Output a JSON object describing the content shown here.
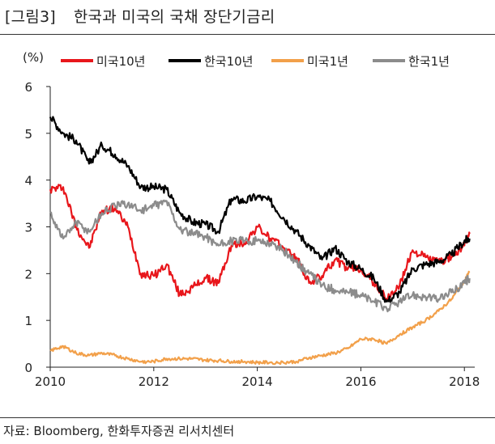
{
  "figure": {
    "label": "[그림3]",
    "title": "한국과 미국의 국채 장단기금리",
    "source": "자료: Bloomberg, 한화투자증권 리서치센터"
  },
  "chart_data": {
    "type": "line",
    "title": "",
    "xlabel": "",
    "ylabel": "(%)",
    "xlim": [
      2010,
      2018.2
    ],
    "ylim": [
      0,
      6
    ],
    "xticks": [
      2010,
      2012,
      2014,
      2016,
      2018
    ],
    "xtick_labels": [
      "2010",
      "2012",
      "2014",
      "2016",
      "2018"
    ],
    "yticks": [
      0,
      1,
      2,
      3,
      4,
      5,
      6
    ],
    "ytick_labels": [
      "0",
      "1",
      "2",
      "3",
      "4",
      "5",
      "6"
    ],
    "grid": false,
    "legend_position": "top",
    "series": [
      {
        "name": "미국10년",
        "color": "#e8161b",
        "x": [
          2010.0,
          2010.25,
          2010.5,
          2010.75,
          2011.0,
          2011.25,
          2011.5,
          2011.75,
          2012.0,
          2012.25,
          2012.5,
          2012.75,
          2013.0,
          2013.25,
          2013.5,
          2013.75,
          2014.0,
          2014.25,
          2014.5,
          2014.75,
          2015.0,
          2015.25,
          2015.5,
          2015.75,
          2016.0,
          2016.25,
          2016.5,
          2016.75,
          2017.0,
          2017.25,
          2017.5,
          2017.75,
          2018.0,
          2018.1
        ],
        "values": [
          3.8,
          3.85,
          3.0,
          2.55,
          3.35,
          3.4,
          3.0,
          2.0,
          1.95,
          2.2,
          1.55,
          1.7,
          1.9,
          1.8,
          2.6,
          2.65,
          3.0,
          2.75,
          2.55,
          2.35,
          1.8,
          1.95,
          2.3,
          2.1,
          2.1,
          1.8,
          1.45,
          1.75,
          2.5,
          2.35,
          2.25,
          2.35,
          2.6,
          2.85
        ]
      },
      {
        "name": "한국10년",
        "color": "#000000",
        "x": [
          2010.0,
          2010.25,
          2010.5,
          2010.75,
          2011.0,
          2011.25,
          2011.5,
          2011.75,
          2012.0,
          2012.25,
          2012.5,
          2012.75,
          2013.0,
          2013.25,
          2013.5,
          2013.75,
          2014.0,
          2014.25,
          2014.5,
          2014.75,
          2015.0,
          2015.25,
          2015.5,
          2015.75,
          2016.0,
          2016.25,
          2016.5,
          2016.75,
          2017.0,
          2017.25,
          2017.5,
          2017.75,
          2018.0,
          2018.1
        ],
        "values": [
          5.35,
          5.0,
          4.85,
          4.35,
          4.75,
          4.55,
          4.3,
          3.85,
          3.85,
          3.8,
          3.3,
          3.1,
          3.05,
          2.9,
          3.6,
          3.55,
          3.65,
          3.55,
          3.2,
          2.9,
          2.6,
          2.3,
          2.55,
          2.25,
          2.1,
          1.9,
          1.4,
          1.6,
          2.1,
          2.2,
          2.25,
          2.4,
          2.7,
          2.75
        ]
      },
      {
        "name": "미국1년",
        "color": "#f2a04a",
        "x": [
          2010.0,
          2010.25,
          2010.5,
          2010.75,
          2011.0,
          2011.25,
          2011.5,
          2011.75,
          2012.0,
          2012.25,
          2012.5,
          2012.75,
          2013.0,
          2013.25,
          2013.5,
          2013.75,
          2014.0,
          2014.25,
          2014.5,
          2014.75,
          2015.0,
          2015.25,
          2015.5,
          2015.75,
          2016.0,
          2016.25,
          2016.5,
          2016.75,
          2017.0,
          2017.25,
          2017.5,
          2017.75,
          2018.0,
          2018.1
        ],
        "values": [
          0.35,
          0.45,
          0.3,
          0.25,
          0.3,
          0.25,
          0.18,
          0.12,
          0.12,
          0.18,
          0.18,
          0.18,
          0.15,
          0.14,
          0.12,
          0.12,
          0.1,
          0.1,
          0.1,
          0.12,
          0.2,
          0.25,
          0.3,
          0.4,
          0.6,
          0.6,
          0.5,
          0.7,
          0.85,
          1.0,
          1.2,
          1.45,
          1.85,
          2.05
        ]
      },
      {
        "name": "한국1년",
        "color": "#8c8c8c",
        "x": [
          2010.0,
          2010.25,
          2010.5,
          2010.75,
          2011.0,
          2011.25,
          2011.5,
          2011.75,
          2012.0,
          2012.25,
          2012.5,
          2012.75,
          2013.0,
          2013.25,
          2013.5,
          2013.75,
          2014.0,
          2014.25,
          2014.5,
          2014.75,
          2015.0,
          2015.25,
          2015.5,
          2015.75,
          2016.0,
          2016.25,
          2016.5,
          2016.75,
          2017.0,
          2017.25,
          2017.5,
          2017.75,
          2018.0,
          2018.1
        ],
        "values": [
          3.3,
          2.75,
          3.1,
          2.9,
          3.3,
          3.45,
          3.5,
          3.35,
          3.45,
          3.55,
          2.95,
          2.85,
          2.8,
          2.6,
          2.7,
          2.7,
          2.7,
          2.65,
          2.5,
          2.25,
          2.0,
          1.75,
          1.65,
          1.6,
          1.55,
          1.4,
          1.25,
          1.4,
          1.55,
          1.5,
          1.45,
          1.6,
          1.8,
          1.9
        ]
      }
    ]
  }
}
